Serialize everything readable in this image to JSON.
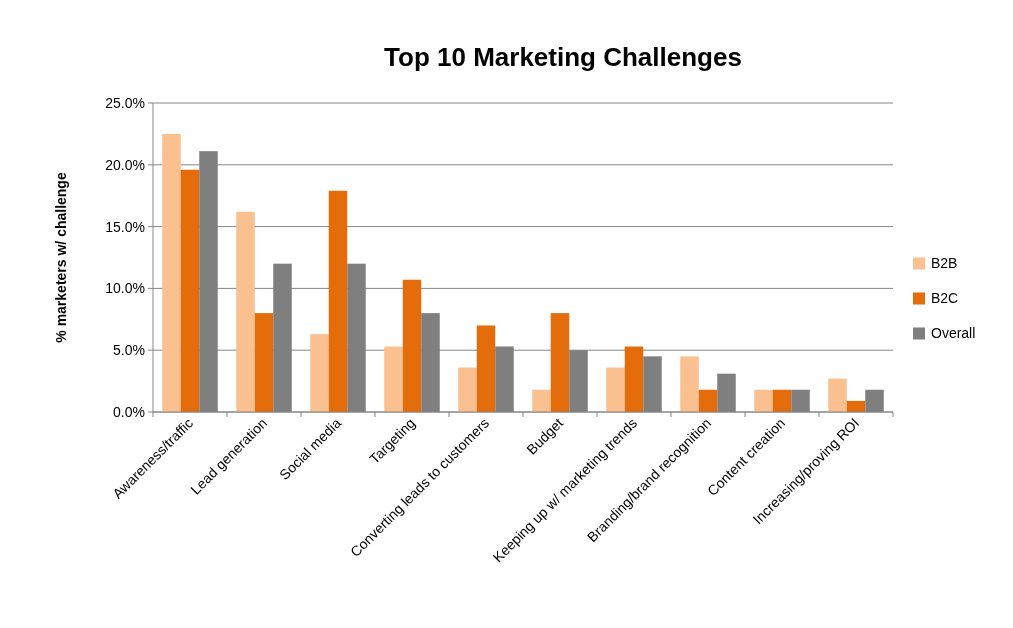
{
  "chart_data": {
    "type": "bar",
    "title": "Top 10 Marketing Challenges",
    "ylabel": "% marketers w/ challenge",
    "categories": [
      "Awareness/traffic",
      "Lead generation",
      "Social media",
      "Targeting",
      "Converting leads to customers",
      "Budget",
      "Keeping up w/ marketing trends",
      "Branding/brand recognition",
      "Content creation",
      "Increasing/proving ROI"
    ],
    "series": [
      {
        "name": "B2B",
        "color": "#fac090",
        "values": [
          22.5,
          16.2,
          6.3,
          5.3,
          3.6,
          1.8,
          3.6,
          4.5,
          1.8,
          2.7
        ]
      },
      {
        "name": "B2C",
        "color": "#e46c0a",
        "values": [
          19.6,
          8.0,
          17.9,
          10.7,
          7.0,
          8.0,
          5.3,
          1.8,
          1.8,
          0.9
        ]
      },
      {
        "name": "Overall",
        "color": "#7f7f7f",
        "values": [
          21.1,
          12.0,
          12.0,
          8.0,
          5.3,
          5.0,
          4.5,
          3.1,
          1.8,
          1.8
        ]
      }
    ],
    "ylim": [
      0,
      25
    ],
    "yticks": [
      {
        "value": 0,
        "label": "0.0%"
      },
      {
        "value": 5,
        "label": "5.0%"
      },
      {
        "value": 10,
        "label": "10.0%"
      },
      {
        "value": 15,
        "label": "15.0%"
      },
      {
        "value": 20,
        "label": "20.0%"
      },
      {
        "value": 25,
        "label": "25.0%"
      }
    ],
    "grid": "y",
    "legend": "right"
  }
}
